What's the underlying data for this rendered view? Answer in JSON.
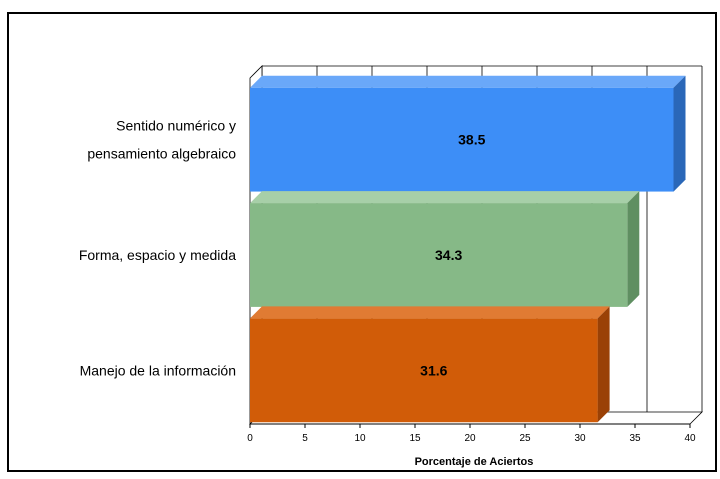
{
  "chart_data": {
    "type": "bar",
    "orientation": "horizontal",
    "style": "3d",
    "categories": [
      [
        "Sentido numérico y",
        "pensamiento algebraico"
      ],
      [
        "Forma, espacio y medida"
      ],
      [
        "Manejo de la información"
      ]
    ],
    "values": [
      38.5,
      34.3,
      31.6
    ],
    "data_labels": [
      "38.5",
      "34.3",
      "31.6"
    ],
    "colors": [
      "#3d8ef7",
      "#86b987",
      "#d15c08"
    ],
    "side_colors": [
      "#2a67b8",
      "#5f8f61",
      "#9a4106"
    ],
    "top_colors": [
      "#6aa8f9",
      "#a7cfa8",
      "#e07b33"
    ],
    "xlabel": "Porcentaje de Aciertos",
    "xlim": [
      0,
      40
    ],
    "xticks": [
      "0",
      "5",
      "10",
      "15",
      "20",
      "25",
      "30",
      "35",
      "40"
    ],
    "grid": true,
    "legend": "none"
  }
}
